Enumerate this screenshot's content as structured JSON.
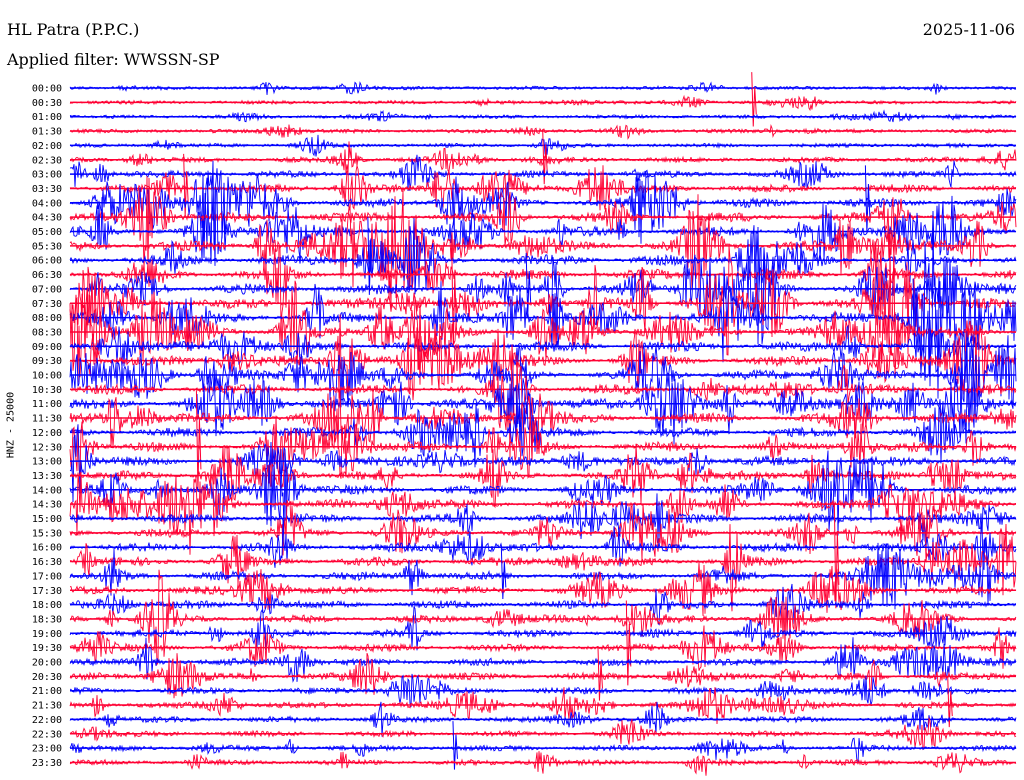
{
  "header": {
    "station": "HL Patra (P.P.C.)",
    "date": "2025-11-06",
    "filter": "Applied filter: WWSSN-SP"
  },
  "chart_data": {
    "type": "line",
    "title": "HL Patra (P.P.C.)",
    "ylabel": "HNZ - 25000",
    "row_labels": [
      "00:00",
      "00:30",
      "01:00",
      "01:30",
      "02:00",
      "02:30",
      "03:00",
      "03:30",
      "04:00",
      "04:30",
      "05:00",
      "05:30",
      "06:00",
      "06:30",
      "07:00",
      "07:30",
      "08:00",
      "08:30",
      "09:00",
      "09:30",
      "10:00",
      "10:30",
      "11:00",
      "11:30",
      "12:00",
      "12:30",
      "13:00",
      "13:30",
      "14:00",
      "14:30",
      "15:00",
      "15:30",
      "16:00",
      "16:30",
      "17:00",
      "17:30",
      "18:00",
      "18:30",
      "19:00",
      "19:30",
      "20:00",
      "20:30",
      "21:00",
      "21:30",
      "22:00",
      "22:30",
      "23:00",
      "23:30"
    ],
    "row_colors": [
      "#0000ff",
      "#ff0033"
    ],
    "relative_amplitude": [
      0.12,
      0.12,
      0.13,
      0.14,
      0.16,
      0.3,
      0.45,
      0.6,
      0.7,
      0.75,
      0.8,
      0.85,
      0.85,
      0.85,
      0.85,
      0.85,
      0.85,
      0.85,
      0.85,
      0.85,
      0.8,
      0.8,
      0.8,
      0.8,
      0.75,
      0.75,
      0.75,
      0.72,
      0.72,
      0.72,
      0.7,
      0.7,
      0.7,
      0.68,
      0.65,
      0.62,
      0.6,
      0.58,
      0.58,
      0.55,
      0.52,
      0.5,
      0.45,
      0.42,
      0.38,
      0.36,
      0.34,
      0.32
    ],
    "grid": false
  }
}
